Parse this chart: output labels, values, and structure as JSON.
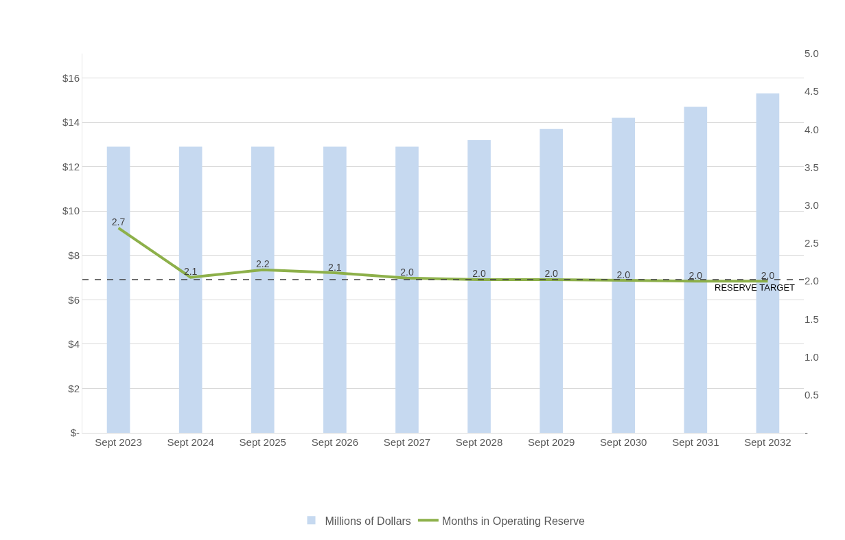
{
  "chart_data": {
    "type": "bar",
    "categories": [
      "Sept 2023",
      "Sept 2024",
      "Sept 2025",
      "Sept 2026",
      "Sept 2027",
      "Sept 2028",
      "Sept 2029",
      "Sept 2030",
      "Sept 2031",
      "Sept 2032"
    ],
    "series": [
      {
        "name": "Millions of Dollars",
        "color": "#c6d9f0",
        "values": [
          12.9,
          12.9,
          12.9,
          12.9,
          12.9,
          13.2,
          13.7,
          14.2,
          14.7,
          15.3
        ]
      },
      {
        "name": "Months in Operating Reserve",
        "type": "line",
        "axis": "y2",
        "color": "#8db04a",
        "values": [
          2.7,
          2.05,
          2.15,
          2.11,
          2.04,
          2.02,
          2.02,
          2.01,
          2.0,
          2.0
        ],
        "value_labels": [
          "2.7",
          "2.1",
          "2.2",
          "2.1",
          "2.0",
          "2.0",
          "2.0",
          "2.0",
          "2.0",
          "2.0"
        ]
      }
    ],
    "ylim": [
      0,
      17.1
    ],
    "yticks": [
      {
        "value": 0,
        "label": "$-"
      },
      {
        "value": 2,
        "label": "$2"
      },
      {
        "value": 4,
        "label": "$4"
      },
      {
        "value": 6,
        "label": "$6"
      },
      {
        "value": 8,
        "label": "$8"
      },
      {
        "value": 10,
        "label": "$10"
      },
      {
        "value": 12,
        "label": "$12"
      },
      {
        "value": 14,
        "label": "$14"
      },
      {
        "value": 16,
        "label": "$16"
      }
    ],
    "y2lim": [
      0,
      5
    ],
    "y2ticks": [
      {
        "value": 0,
        "label": "-"
      },
      0.5,
      {
        "value": 1,
        "label": "1.0"
      },
      1.5,
      {
        "value": 2,
        "label": "2.0"
      },
      2.5,
      {
        "value": 3,
        "label": "3.0"
      },
      3.5,
      {
        "value": 4,
        "label": "4.0"
      },
      4.5,
      {
        "value": 5,
        "label": "5.0"
      }
    ],
    "ref_lines": [
      {
        "axis": "y2",
        "value": 2.02,
        "label": "RESERVE TARGET",
        "color": "#404040",
        "line_style": "dashed"
      }
    ],
    "grid": "y",
    "legend": "bottom"
  }
}
